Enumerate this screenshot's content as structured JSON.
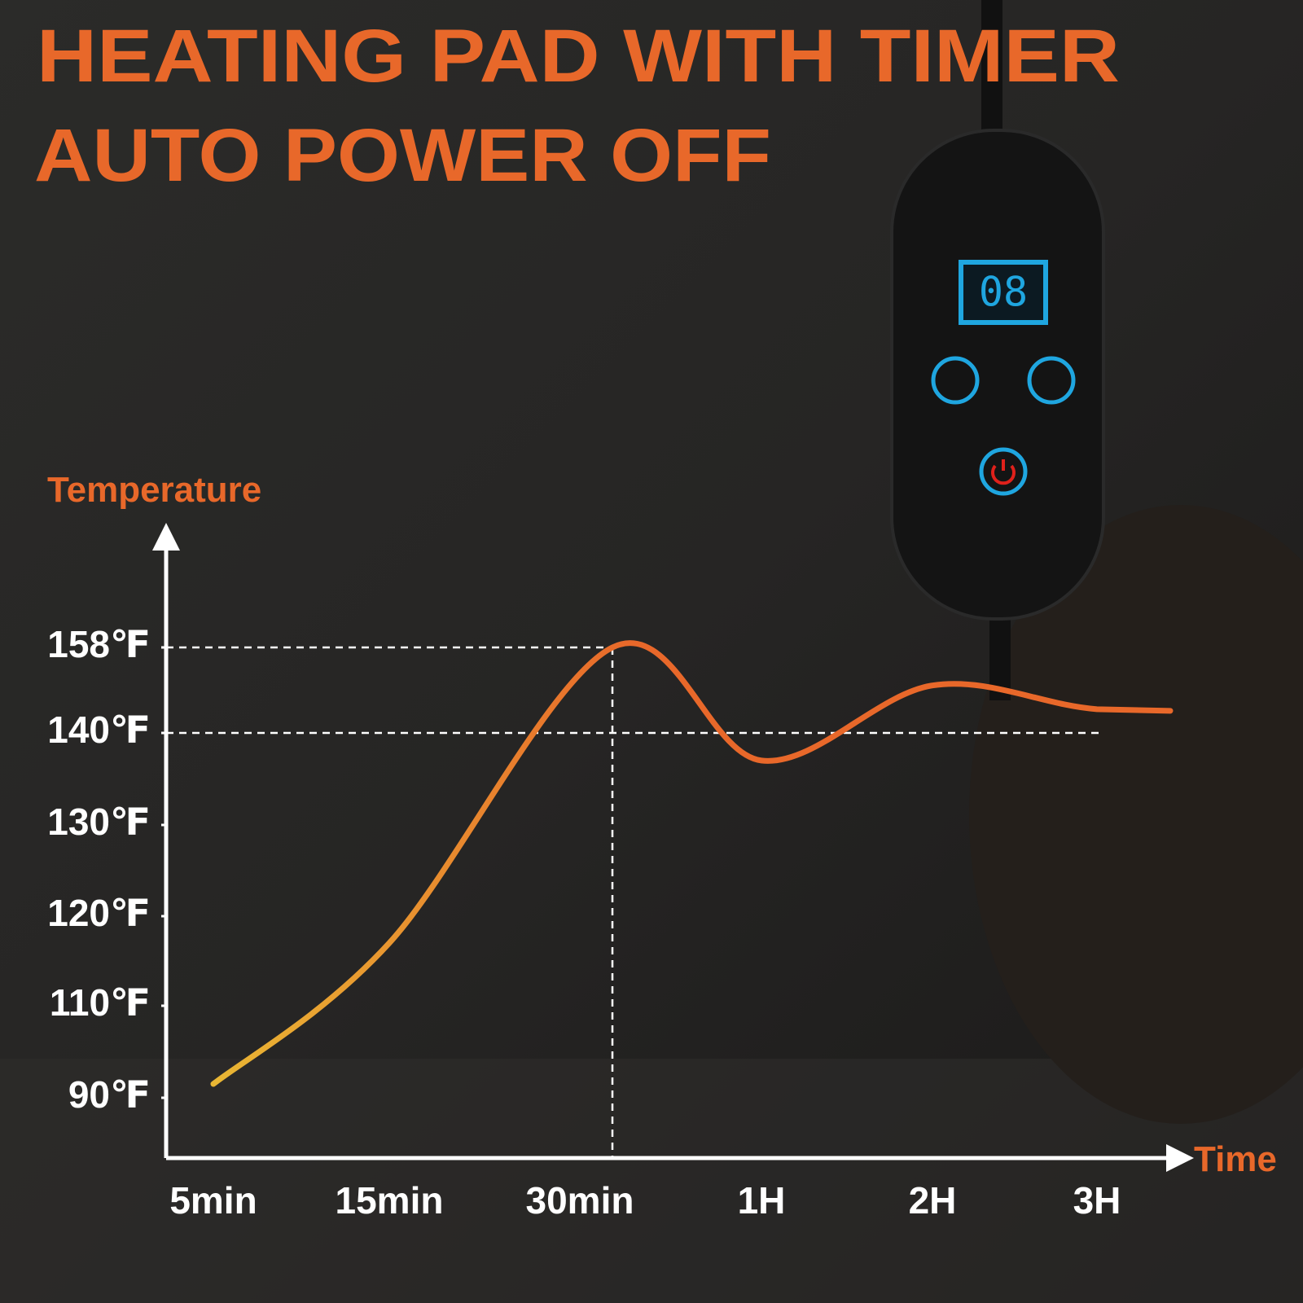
{
  "chart_data": {
    "type": "line",
    "title": "HEATING PAD WITH TIMER",
    "subtitle": "AUTO POWER OFF",
    "y_label": "Temperature",
    "x_label": "Time",
    "categories": [
      "5min",
      "15min",
      "30min",
      "1H",
      "2H",
      "3H"
    ],
    "values": [
      93,
      117,
      158,
      137,
      150,
      145
    ],
    "color_start": "#e9b934",
    "color_end": "#e8682a",
    "yticks": [
      {
        "value": 90,
        "label": "90℉"
      },
      {
        "value": 110,
        "label": "110℉"
      },
      {
        "value": 120,
        "label": "120℉"
      },
      {
        "value": 130,
        "label": "130℉"
      },
      {
        "value": 140,
        "label": "140℉"
      },
      {
        "value": 158,
        "label": "158℉"
      }
    ],
    "guides": [
      158,
      140
    ],
    "device_display": "08"
  }
}
